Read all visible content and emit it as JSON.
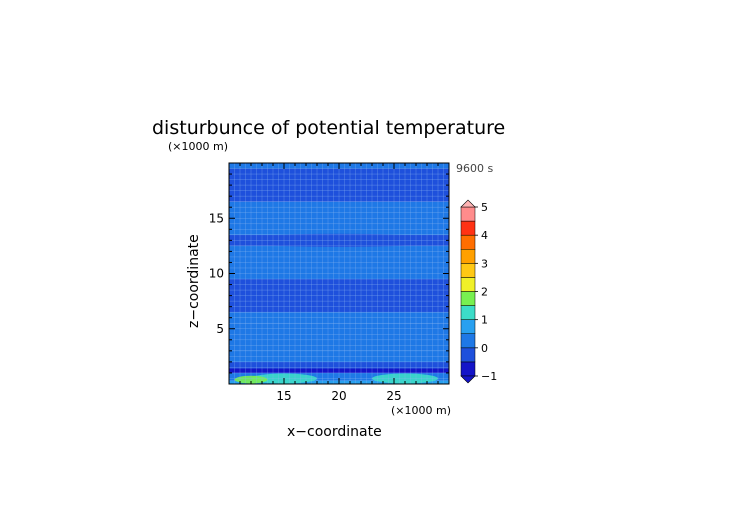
{
  "chart_data": {
    "type": "heatmap",
    "title": "disturbunce of potential temperature",
    "xlabel": "x−coordinate",
    "ylabel": "z−coordinate",
    "x_unit": "(×1000 m)",
    "y_unit": "(×1000 m)",
    "time_label": "9600 s",
    "xlim": [
      10,
      30
    ],
    "ylim": [
      0,
      20
    ],
    "x_ticks": [
      15,
      20,
      25
    ],
    "y_ticks": [
      5,
      10,
      15
    ],
    "grid": true,
    "colorbar": {
      "levels": [
        -1,
        -0.5,
        0,
        0.5,
        1,
        1.5,
        2,
        2.5,
        3,
        3.5,
        4,
        4.5,
        5
      ],
      "colors": [
        "#1414c8",
        "#1e50dc",
        "#1e78e6",
        "#28a0f0",
        "#3cdcc8",
        "#78f050",
        "#f0f028",
        "#ffc814",
        "#ffa000",
        "#ff6e00",
        "#ff3214",
        "#ff8c8c",
        "#ffb4b4"
      ],
      "tick_labels": [
        "−1",
        "0",
        "1",
        "2",
        "3",
        "4",
        "5"
      ],
      "tick_values": [
        -1,
        0,
        1,
        2,
        3,
        4,
        5
      ]
    },
    "field_description_bands": [
      {
        "z": [
          0.0,
          0.3
        ],
        "value": 0.9
      },
      {
        "z": [
          0.3,
          1.0
        ],
        "value": 0.3
      },
      {
        "z": [
          1.0,
          1.4
        ],
        "value": -0.6
      },
      {
        "z": [
          1.4,
          2.0
        ],
        "value": -0.2
      },
      {
        "z": [
          2.0,
          3.0
        ],
        "value": 0.0
      },
      {
        "z": [
          3.0,
          5.5
        ],
        "value": 0.1
      },
      {
        "z": [
          5.5,
          6.5
        ],
        "value": 0.05
      },
      {
        "z": [
          6.5,
          9.5
        ],
        "value": -0.15
      },
      {
        "z": [
          9.5,
          12.5
        ],
        "value": 0.1
      },
      {
        "z": [
          12.5,
          13.5
        ],
        "value": -0.1
      },
      {
        "z": [
          13.5,
          16.5
        ],
        "value": 0.1
      },
      {
        "z": [
          16.5,
          19.5
        ],
        "value": -0.05
      },
      {
        "z": [
          19.5,
          20
        ],
        "value": 0.1
      }
    ]
  }
}
